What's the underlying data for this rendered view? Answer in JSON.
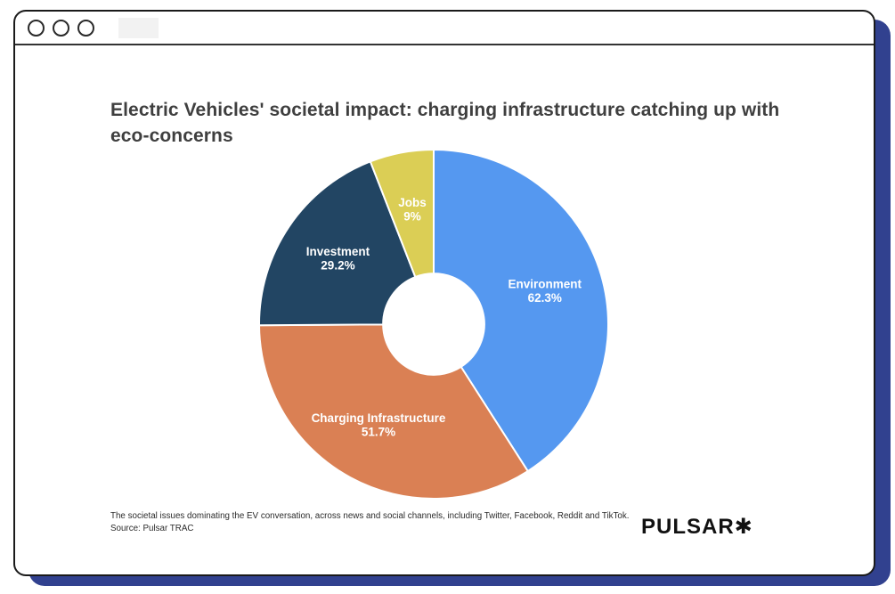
{
  "window": {
    "controls_count": 3
  },
  "header": {
    "title": "Electric Vehicles' societal impact: charging infrastructure catching up with eco-concerns"
  },
  "chart_data": {
    "type": "pie",
    "donut": true,
    "title": "Electric Vehicles' societal impact: charging infrastructure catching up with eco-concerns",
    "categories": [
      "Environment",
      "Charging Infrastructure",
      "Investment",
      "Jobs"
    ],
    "values": [
      62.3,
      51.7,
      29.2,
      9
    ],
    "value_labels": [
      "62.3%",
      "51.7%",
      "29.2%",
      "9%"
    ],
    "colors": [
      "#5598f0",
      "#da8054",
      "#224563",
      "#dbce55"
    ],
    "label_color": "#ffffff",
    "normalized_by_sum": true,
    "start_at_top": true,
    "clockwise": true,
    "inner_radius_ratio": 0.29,
    "legend": "none"
  },
  "footer": {
    "caption_line1": "The societal issues dominating the EV conversation, across news and social channels, including Twitter, Facebook, Reddit and TikTok.",
    "caption_line2": "Source: Pulsar TRAC",
    "logo": "PULSAR✱"
  },
  "colors": {
    "shadow_blue": "#31418f",
    "window_border": "#1a1a1a",
    "title_text": "#3f3f3f"
  }
}
